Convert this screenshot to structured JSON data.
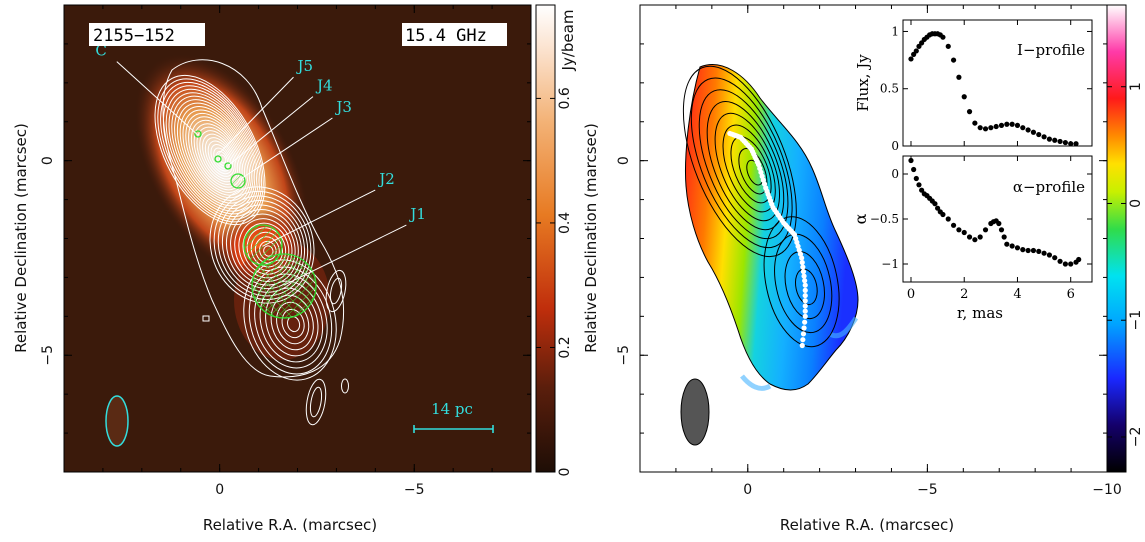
{
  "chart_data": [
    {
      "type": "heatmap",
      "xlabel": "Relative R.A. (marcsec)",
      "ylabel": "Relative Declination (marcsec)",
      "xlim": [
        4,
        -8
      ],
      "ylim": [
        -8,
        4
      ],
      "xticks": [
        0,
        -5
      ],
      "yticks": [
        0,
        -5
      ],
      "source_label": "2155−152",
      "freq_label": "15.4 GHz",
      "colorbar": {
        "label": "Jy/beam",
        "range": [
          0,
          0.75
        ],
        "ticks": [
          0,
          0.2,
          0.4,
          0.6
        ],
        "tick_labels": [
          "0",
          "0.2",
          "0.4",
          "0.6"
        ]
      },
      "components": [
        {
          "name": "C",
          "x": 0.55,
          "y": 0.65,
          "label_x": 2.9,
          "label_y": 2.7
        },
        {
          "name": "J5",
          "x": 0.05,
          "y": 0.15,
          "label_x": -2.0,
          "label_y": 2.3
        },
        {
          "name": "J4",
          "x": -0.25,
          "y": -0.1,
          "label_x": -2.5,
          "label_y": 1.8
        },
        {
          "name": "J3",
          "x": -0.5,
          "y": -0.5,
          "label_x": -3.0,
          "label_y": 1.25
        },
        {
          "name": "J2",
          "x": -1.1,
          "y": -2.2,
          "label_x": -4.1,
          "label_y": -0.6
        },
        {
          "name": "J1",
          "x": -1.65,
          "y": -3.2,
          "label_x": -4.9,
          "label_y": -1.5
        }
      ],
      "scalebar_label": "14 pc"
    },
    {
      "type": "heatmap",
      "xlabel": "Relative R.A. (marcsec)",
      "ylabel": "Relative Declination (marcsec)",
      "xlim": [
        3,
        -10
      ],
      "ylim": [
        -8,
        4
      ],
      "xticks": [
        0,
        -5,
        -10
      ],
      "yticks": [
        0,
        -5
      ],
      "colorbar": {
        "range": [
          -2.3,
          1.7
        ],
        "ticks": [
          1,
          0,
          -1,
          -2
        ],
        "tick_labels": [
          "1",
          "0",
          "−1",
          "−2"
        ]
      },
      "ridge_line": [
        [
          0.5,
          0.7
        ],
        [
          0.2,
          0.6
        ],
        [
          -0.1,
          0.3
        ],
        [
          -0.3,
          -0.1
        ],
        [
          -0.5,
          -0.7
        ],
        [
          -0.7,
          -1.2
        ],
        [
          -1.0,
          -1.6
        ],
        [
          -1.3,
          -1.9
        ],
        [
          -1.5,
          -2.5
        ],
        [
          -1.6,
          -3.2
        ],
        [
          -1.6,
          -4.0
        ],
        [
          -1.5,
          -4.9
        ]
      ]
    },
    {
      "type": "scatter",
      "title": "I−profile",
      "xlabel": "",
      "ylabel": "Flux, Jy",
      "xlim": [
        -0.3,
        6.8
      ],
      "ylim": [
        0,
        1.1
      ],
      "yticks": [
        0,
        0.5,
        1
      ],
      "ytick_labels": [
        "0",
        "0.5",
        "1"
      ],
      "x": [
        0.0,
        0.1,
        0.2,
        0.3,
        0.4,
        0.5,
        0.6,
        0.7,
        0.8,
        0.9,
        1.0,
        1.1,
        1.2,
        1.4,
        1.6,
        1.8,
        2.0,
        2.2,
        2.4,
        2.6,
        2.8,
        3.0,
        3.2,
        3.4,
        3.6,
        3.8,
        4.0,
        4.2,
        4.4,
        4.6,
        4.8,
        5.0,
        5.2,
        5.4,
        5.6,
        5.8,
        6.0,
        6.2
      ],
      "y": [
        0.76,
        0.8,
        0.83,
        0.87,
        0.9,
        0.93,
        0.95,
        0.97,
        0.98,
        0.98,
        0.98,
        0.97,
        0.95,
        0.87,
        0.75,
        0.6,
        0.43,
        0.3,
        0.2,
        0.16,
        0.15,
        0.16,
        0.17,
        0.18,
        0.19,
        0.19,
        0.18,
        0.16,
        0.14,
        0.12,
        0.1,
        0.08,
        0.06,
        0.05,
        0.04,
        0.03,
        0.02,
        0.02
      ]
    },
    {
      "type": "scatter",
      "title": "α−profile",
      "xlabel": "r, mas",
      "ylabel": "α",
      "xlim": [
        -0.3,
        6.8
      ],
      "ylim": [
        -1.2,
        0.2
      ],
      "xticks": [
        0,
        2,
        4,
        6
      ],
      "xtick_labels": [
        "0",
        "2",
        "4",
        "6"
      ],
      "yticks": [
        0,
        -0.5,
        -1
      ],
      "ytick_labels": [
        "0",
        "−0.5",
        "−1"
      ],
      "x": [
        0.0,
        0.1,
        0.2,
        0.3,
        0.4,
        0.5,
        0.6,
        0.7,
        0.8,
        0.9,
        1.0,
        1.1,
        1.2,
        1.4,
        1.6,
        1.8,
        2.0,
        2.2,
        2.4,
        2.6,
        2.8,
        3.0,
        3.1,
        3.2,
        3.3,
        3.4,
        3.5,
        3.6,
        3.8,
        4.0,
        4.2,
        4.4,
        4.6,
        4.8,
        5.0,
        5.2,
        5.4,
        5.6,
        5.8,
        6.0,
        6.2,
        6.3
      ],
      "y": [
        0.15,
        0.05,
        -0.05,
        -0.12,
        -0.18,
        -0.22,
        -0.24,
        -0.27,
        -0.3,
        -0.33,
        -0.38,
        -0.42,
        -0.45,
        -0.5,
        -0.57,
        -0.62,
        -0.65,
        -0.7,
        -0.73,
        -0.7,
        -0.62,
        -0.55,
        -0.53,
        -0.52,
        -0.55,
        -0.62,
        -0.7,
        -0.78,
        -0.8,
        -0.82,
        -0.84,
        -0.85,
        -0.85,
        -0.86,
        -0.88,
        -0.9,
        -0.93,
        -0.97,
        -1.0,
        -1.0,
        -0.98,
        -0.95
      ]
    }
  ]
}
